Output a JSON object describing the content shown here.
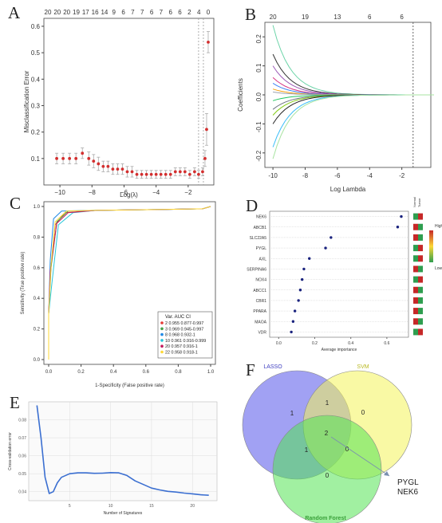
{
  "panel_labels": [
    "A",
    "B",
    "C",
    "D",
    "E",
    "F"
  ],
  "chart_data": [
    {
      "panel": "A",
      "type": "scatter",
      "xlabel": "Log(λ)",
      "ylabel": "Misclassification Error",
      "top_ticks": [
        "20",
        "20",
        "20",
        "19",
        "17",
        "16",
        "14",
        "9",
        "6",
        "7",
        "7",
        "6",
        "7",
        "6",
        "6",
        "2",
        "4",
        "0"
      ],
      "xticks": [
        "−10",
        "−8",
        "−6",
        "−4",
        "−2"
      ],
      "yticks": [
        "0.1",
        "0.2",
        "0.3",
        "0.4",
        "0.5",
        "0.6"
      ],
      "xlim": [
        -11,
        -0.4
      ],
      "ylim": [
        0.0,
        0.63
      ],
      "vlines": [
        -1.35,
        -1.05
      ],
      "x": [
        -10.2,
        -9.8,
        -9.4,
        -9.0,
        -8.6,
        -8.2,
        -7.9,
        -7.6,
        -7.3,
        -7.0,
        -6.7,
        -6.4,
        -6.1,
        -5.8,
        -5.5,
        -5.2,
        -4.9,
        -4.6,
        -4.3,
        -4.0,
        -3.7,
        -3.4,
        -3.1,
        -2.8,
        -2.5,
        -2.2,
        -1.9,
        -1.6,
        -1.35,
        -1.1,
        -0.95,
        -0.85,
        -0.75
      ],
      "y": [
        0.1,
        0.1,
        0.1,
        0.1,
        0.12,
        0.1,
        0.09,
        0.08,
        0.07,
        0.07,
        0.06,
        0.06,
        0.06,
        0.05,
        0.05,
        0.04,
        0.04,
        0.04,
        0.04,
        0.04,
        0.04,
        0.04,
        0.04,
        0.05,
        0.05,
        0.05,
        0.04,
        0.05,
        0.04,
        0.05,
        0.1,
        0.21,
        0.54
      ],
      "err": [
        0.02,
        0.02,
        0.02,
        0.02,
        0.02,
        0.025,
        0.025,
        0.025,
        0.02,
        0.02,
        0.02,
        0.02,
        0.02,
        0.02,
        0.02,
        0.015,
        0.015,
        0.015,
        0.015,
        0.015,
        0.015,
        0.015,
        0.015,
        0.015,
        0.015,
        0.015,
        0.015,
        0.015,
        0.015,
        0.015,
        0.03,
        0.06,
        0.04
      ]
    },
    {
      "panel": "B",
      "type": "line",
      "xlabel": "Log Lambda",
      "ylabel": "Coefficients",
      "top_ticks": [
        "20",
        "19",
        "13",
        "6",
        "6"
      ],
      "top_tick_x": [
        -10,
        -8,
        -6,
        -4,
        -2
      ],
      "xticks": [
        "-10",
        "-8",
        "-6",
        "-4",
        "-2"
      ],
      "yticks": [
        "-0.2",
        "-0.1",
        "0.0",
        "0.1",
        "0.2"
      ],
      "xlim": [
        -10.5,
        -0.2
      ],
      "ylim": [
        -0.25,
        0.25
      ],
      "vline": -1.3,
      "series": [
        {
          "color": "#6cd4a8",
          "start": 0.24
        },
        {
          "color": "#333333",
          "start": 0.14
        },
        {
          "color": "#9b59b6",
          "start": 0.1
        },
        {
          "color": "#d63384",
          "start": 0.06
        },
        {
          "color": "#3b82f6",
          "start": 0.04
        },
        {
          "color": "#f59e0b",
          "start": 0.02
        },
        {
          "color": "#9ca3af",
          "start": 0.01
        },
        {
          "color": "#22c55e",
          "start": -0.02
        },
        {
          "color": "#6b7280",
          "start": -0.05
        },
        {
          "color": "#84cc16",
          "start": -0.07
        },
        {
          "color": "#222222",
          "start": -0.1
        },
        {
          "color": "#38bdf8",
          "start": -0.18
        },
        {
          "color": "#a7e3a0",
          "start": -0.22
        }
      ]
    },
    {
      "panel": "C",
      "type": "line",
      "xlabel": "1-Specificity (False positive rate)",
      "ylabel": "Sensitivity (True positive rate)",
      "xticks": [
        "0.0",
        "0.2",
        "0.4",
        "0.6",
        "0.8",
        "1.0"
      ],
      "yticks": [
        "0.0",
        "0.2",
        "0.4",
        "0.6",
        "0.8",
        "1.0"
      ],
      "legend_title": "Var. AUC CI",
      "legend": [
        {
          "label": "2 0.955 0.877-0.997",
          "color": "#e53935"
        },
        {
          "label": "3 0.969 0.945-0.997",
          "color": "#43a047"
        },
        {
          "label": "8 0.968 0.932-1",
          "color": "#1e88e5"
        },
        {
          "label": "10 0.961 0.916-0.999",
          "color": "#26c6da"
        },
        {
          "label": "20 0.957 0.916-1",
          "color": "#c2185b"
        },
        {
          "label": "22 0.958 0.918-1",
          "color": "#fdd835"
        }
      ]
    },
    {
      "panel": "D",
      "type": "scatter",
      "xlabel": "Average importance",
      "xticks": [
        "0.0",
        "0.2",
        "0.4",
        "0.6"
      ],
      "xlim": [
        -0.05,
        0.72
      ],
      "categories": [
        "NEK6",
        "ABCB1",
        "SLC22A5",
        "PYGL",
        "AXL",
        "SERPINA6",
        "NOX4",
        "ABCC1",
        "CBR1",
        "PPARA",
        "MAOA",
        "VDR"
      ],
      "values": [
        0.68,
        0.66,
        0.29,
        0.26,
        0.17,
        0.14,
        0.13,
        0.12,
        0.11,
        0.09,
        0.08,
        0.07
      ],
      "heat_headers": [
        "Normal",
        "Tumor"
      ],
      "heat_colors": [
        [
          "#2e9e4f",
          "#c62828"
        ],
        [
          "#c62828",
          "#2e9e4f"
        ],
        [
          "#c62828",
          "#2e9e4f"
        ],
        [
          "#2e9e4f",
          "#c62828"
        ],
        [
          "#2e9e4f",
          "#c62828"
        ],
        [
          "#c62828",
          "#2e9e4f"
        ],
        [
          "#2e9e4f",
          "#c62828"
        ],
        [
          "#c62828",
          "#2e9e4f"
        ],
        [
          "#c62828",
          "#2e9e4f"
        ],
        [
          "#c62828",
          "#2e9e4f"
        ],
        [
          "#c62828",
          "#2e9e4f"
        ],
        [
          "#2e9e4f",
          "#c62828"
        ]
      ],
      "scale_high": "High",
      "scale_low": "Low"
    },
    {
      "panel": "E",
      "type": "line",
      "xlabel": "Number of Signatures",
      "ylabel": "Cross-validation error",
      "xticks": [
        "5",
        "10",
        "15",
        "20"
      ],
      "yticks": [
        "0.04",
        "0.05",
        "0.06",
        "0.07",
        "0.08"
      ],
      "xlim": [
        0,
        23
      ],
      "ylim": [
        0.035,
        0.09
      ],
      "x": [
        1,
        1.5,
        2,
        2.5,
        3,
        3.5,
        4,
        5,
        6,
        7,
        8,
        9,
        10,
        11,
        12,
        13,
        14,
        15,
        16,
        17,
        18,
        19,
        20,
        21,
        22
      ],
      "y": [
        0.088,
        0.07,
        0.048,
        0.039,
        0.04,
        0.045,
        0.048,
        0.05,
        0.0505,
        0.0505,
        0.0502,
        0.0503,
        0.0506,
        0.0505,
        0.049,
        0.046,
        0.044,
        0.042,
        0.041,
        0.0402,
        0.0398,
        0.0392,
        0.0388,
        0.0383,
        0.038
      ]
    },
    {
      "panel": "F",
      "type": "venn",
      "sets": [
        "LASSO",
        "SVM",
        "Random Forest"
      ],
      "set_colors": [
        "#5353ea",
        "#f4f45a",
        "#54e354"
      ],
      "regions": [
        {
          "label": "lasso_only",
          "value": "1"
        },
        {
          "label": "lasso_svm",
          "value": "1"
        },
        {
          "label": "svm_only",
          "value": "0"
        },
        {
          "label": "all_three",
          "value": "2"
        },
        {
          "label": "lasso_rf",
          "value": "1"
        },
        {
          "label": "svm_rf",
          "value": "0"
        },
        {
          "label": "rf_only",
          "value": "0"
        }
      ],
      "callout": [
        "PYGL",
        "NEK6"
      ]
    }
  ]
}
